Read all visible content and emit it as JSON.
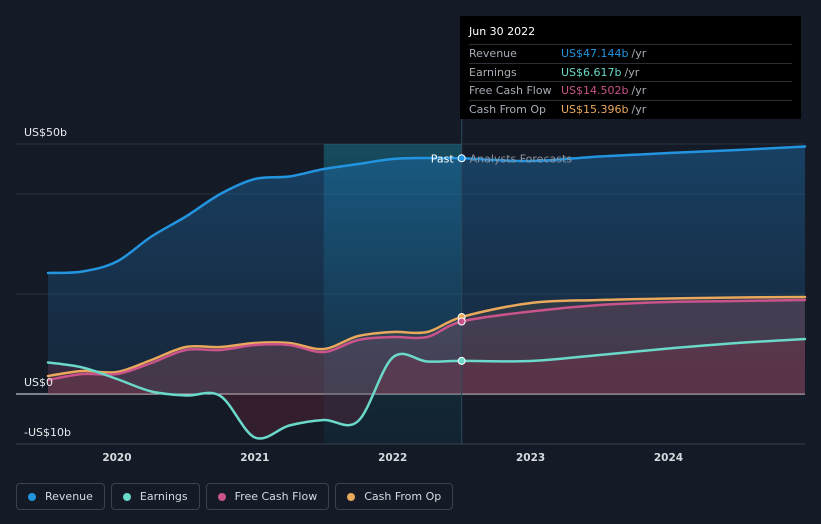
{
  "tooltip": {
    "date": "Jun 30 2022",
    "rows": [
      {
        "label": "Revenue",
        "value": "US$47.144b",
        "unit": "/yr",
        "color": "#2394df"
      },
      {
        "label": "Earnings",
        "value": "US$6.617b",
        "unit": "/yr",
        "color": "#6ad9c9"
      },
      {
        "label": "Free Cash Flow",
        "value": "US$14.502b",
        "unit": "/yr",
        "color": "#c9538a"
      },
      {
        "label": "Cash From Op",
        "value": "US$15.396b",
        "unit": "/yr",
        "color": "#e9a85c"
      }
    ]
  },
  "chart_data": {
    "type": "line",
    "y_unit_labels": {
      "top": "US$50b",
      "zero": "US$0",
      "bottom": "-US$10b"
    },
    "ylim": [
      -10,
      50
    ],
    "xlim": [
      2019.5,
      2024.99
    ],
    "x_ticks": [
      "2020",
      "2021",
      "2022",
      "2023",
      "2024"
    ],
    "x_tick_values": [
      2020,
      2021,
      2022,
      2023,
      2024
    ],
    "divider_x": 2022.5,
    "highlight_start_x": 2021.5,
    "labels": {
      "past": "Past",
      "forecast": "Analysts Forecasts"
    },
    "series": [
      {
        "name": "Revenue",
        "color": "#2394df",
        "x": [
          2019.5,
          2019.75,
          2020.0,
          2020.25,
          2020.5,
          2020.75,
          2021.0,
          2021.25,
          2021.5,
          2021.75,
          2022.0,
          2022.25,
          2022.5,
          2023.0,
          2023.5,
          2024.0,
          2024.5,
          2024.99
        ],
        "values": [
          24.2,
          24.5,
          26.5,
          31.5,
          35.5,
          40.0,
          43.0,
          43.5,
          45.0,
          46.0,
          47.0,
          47.2,
          47.14,
          46.6,
          47.5,
          48.2,
          48.8,
          49.5
        ]
      },
      {
        "name": "Cash From Op",
        "color": "#e9a85c",
        "x": [
          2019.5,
          2019.75,
          2020.0,
          2020.25,
          2020.5,
          2020.75,
          2021.0,
          2021.25,
          2021.5,
          2021.75,
          2022.0,
          2022.25,
          2022.5,
          2023.0,
          2023.5,
          2024.0,
          2024.5,
          2024.99
        ],
        "values": [
          3.6,
          4.6,
          4.4,
          6.8,
          9.4,
          9.4,
          10.2,
          10.2,
          9.0,
          11.6,
          12.4,
          12.4,
          15.396,
          18.2,
          18.8,
          19.1,
          19.3,
          19.4
        ]
      },
      {
        "name": "Free Cash Flow",
        "color": "#c9538a",
        "x": [
          2019.5,
          2019.75,
          2020.0,
          2020.25,
          2020.5,
          2020.75,
          2021.0,
          2021.25,
          2021.5,
          2021.75,
          2022.0,
          2022.25,
          2022.5,
          2023.0,
          2023.5,
          2024.0,
          2024.5,
          2024.99
        ],
        "values": [
          2.8,
          4.0,
          4.0,
          6.2,
          8.8,
          8.8,
          9.8,
          9.8,
          8.4,
          10.8,
          11.4,
          11.4,
          14.502,
          16.5,
          17.8,
          18.4,
          18.6,
          18.8
        ]
      },
      {
        "name": "Earnings",
        "color": "#6ad9c9",
        "x": [
          2019.5,
          2019.75,
          2020.0,
          2020.25,
          2020.5,
          2020.75,
          2021.0,
          2021.25,
          2021.5,
          2021.75,
          2022.0,
          2022.25,
          2022.5,
          2023.0,
          2023.5,
          2024.0,
          2024.5,
          2024.99
        ],
        "values": [
          6.3,
          5.3,
          3.0,
          0.5,
          -0.3,
          -0.4,
          -8.7,
          -6.3,
          -5.2,
          -5.4,
          7.3,
          6.5,
          6.617,
          6.6,
          7.8,
          9.1,
          10.2,
          11.0
        ]
      }
    ]
  },
  "legend": [
    {
      "label": "Revenue",
      "color": "#2394df"
    },
    {
      "label": "Earnings",
      "color": "#6ad9c9"
    },
    {
      "label": "Free Cash Flow",
      "color": "#c9538a"
    },
    {
      "label": "Cash From Op",
      "color": "#e9a85c"
    }
  ]
}
